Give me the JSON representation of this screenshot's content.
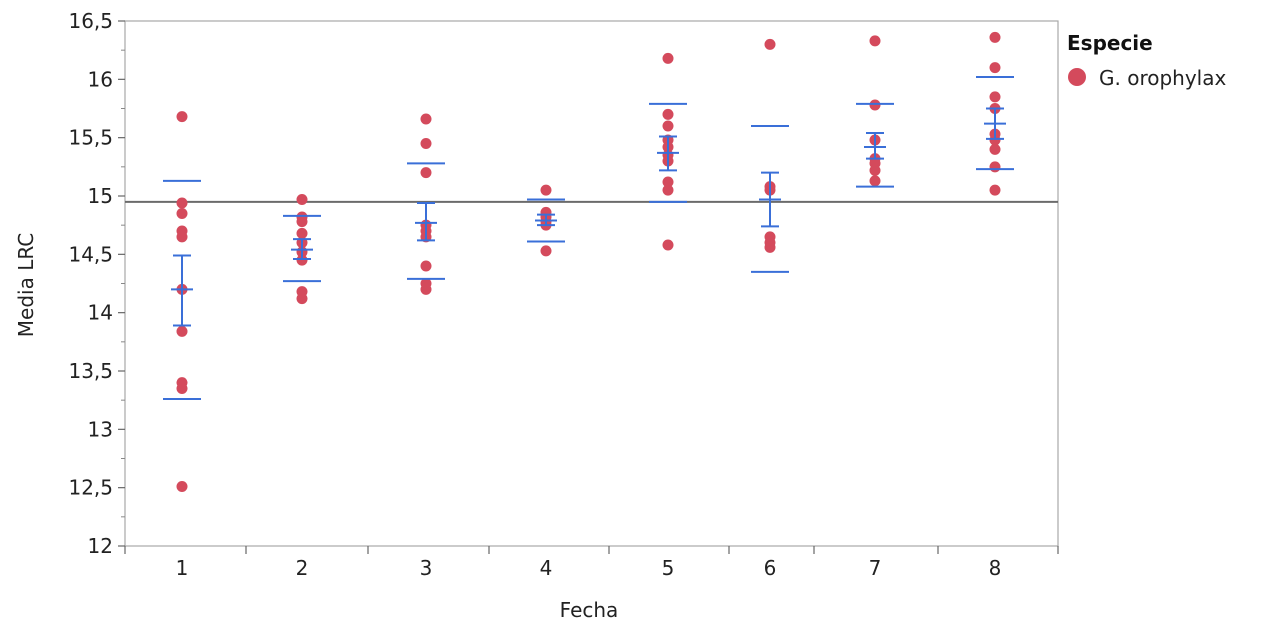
{
  "chart_data": {
    "type": "scatter",
    "xlabel": "Fecha",
    "ylabel": "Media LRC",
    "categories": [
      "1",
      "2",
      "3",
      "4",
      "5",
      "6",
      "7",
      "8"
    ],
    "ylim": [
      12,
      16.5
    ],
    "yticks": [
      "12",
      "12,5",
      "13",
      "13,5",
      "14",
      "14,5",
      "15",
      "15,5",
      "16",
      "16,5"
    ],
    "reference_line": 14.95,
    "legend": {
      "title": "Especie",
      "position": "top-right"
    },
    "series": [
      {
        "name": "G. orophylax",
        "color": "#d44a5c",
        "points": [
          [
            [
              1
            ],
            [
              15.68,
              14.94,
              14.85,
              14.7,
              14.65,
              14.2,
              13.84,
              13.4,
              13.35,
              12.51
            ]
          ],
          [
            [
              2
            ],
            [
              14.97,
              14.82,
              14.78,
              14.68,
              14.6,
              14.52,
              14.45,
              14.18,
              14.12
            ]
          ],
          [
            [
              3
            ],
            [
              15.66,
              15.45,
              15.2,
              14.75,
              14.7,
              14.65,
              14.4,
              14.25,
              14.2
            ]
          ],
          [
            [
              4
            ],
            [
              15.05,
              14.86,
              14.82,
              14.78,
              14.75,
              14.53
            ]
          ],
          [
            [
              5
            ],
            [
              16.18,
              15.7,
              15.6,
              15.48,
              15.42,
              15.35,
              15.3,
              15.12,
              15.05,
              14.58
            ]
          ],
          [
            [
              6
            ],
            [
              16.3,
              15.08,
              15.05,
              14.65,
              14.6,
              14.56
            ]
          ],
          [
            [
              7
            ],
            [
              16.33,
              15.78,
              15.48,
              15.32,
              15.28,
              15.22,
              15.13
            ]
          ],
          [
            [
              8
            ],
            [
              16.36,
              16.1,
              15.85,
              15.75,
              15.53,
              15.48,
              15.4,
              15.25,
              15.05
            ]
          ]
        ]
      }
    ],
    "error_bars": [
      {
        "x": "1",
        "mean": 14.2,
        "ci": [
          13.89,
          14.49
        ],
        "sd": [
          13.26,
          15.13
        ]
      },
      {
        "x": "2",
        "mean": 14.54,
        "ci": [
          14.46,
          14.63
        ],
        "sd": [
          14.27,
          14.83
        ]
      },
      {
        "x": "3",
        "mean": 14.77,
        "ci": [
          14.62,
          14.94
        ],
        "sd": [
          14.29,
          15.28
        ]
      },
      {
        "x": "4",
        "mean": 14.79,
        "ci": [
          14.75,
          14.84
        ],
        "sd": [
          14.61,
          14.97
        ]
      },
      {
        "x": "5",
        "mean": 15.37,
        "ci": [
          15.22,
          15.51
        ],
        "sd": [
          14.95,
          15.79
        ]
      },
      {
        "x": "6",
        "mean": 14.97,
        "ci": [
          14.74,
          15.2
        ],
        "sd": [
          14.35,
          15.6
        ]
      },
      {
        "x": "7",
        "mean": 15.42,
        "ci": [
          15.32,
          15.54
        ],
        "sd": [
          15.08,
          15.79
        ]
      },
      {
        "x": "8",
        "mean": 15.62,
        "ci": [
          15.49,
          15.75
        ],
        "sd": [
          15.23,
          16.02
        ]
      }
    ]
  }
}
